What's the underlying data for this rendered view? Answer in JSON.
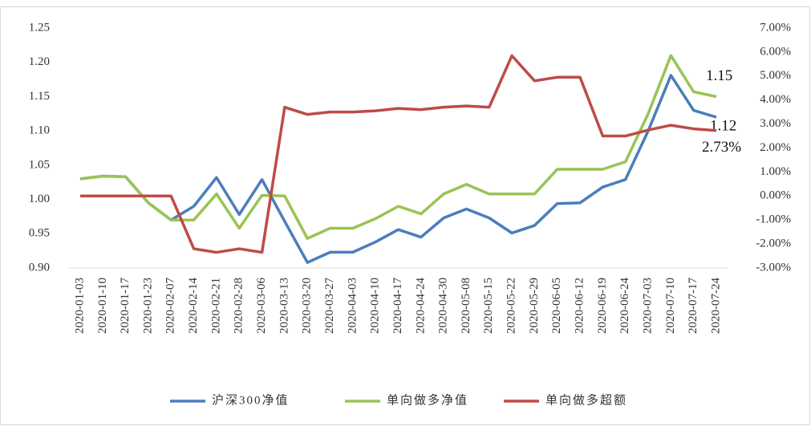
{
  "chart_data": {
    "type": "line",
    "categories": [
      "2020-01-03",
      "2020-01-10",
      "2020-01-17",
      "2020-01-23",
      "2020-02-07",
      "2020-02-14",
      "2020-02-21",
      "2020-02-28",
      "2020-03-06",
      "2020-03-13",
      "2020-03-20",
      "2020-03-27",
      "2020-04-03",
      "2020-04-10",
      "2020-04-17",
      "2020-04-24",
      "2020-04-30",
      "2020-05-08",
      "2020-05-15",
      "2020-05-22",
      "2020-05-29",
      "2020-06-05",
      "2020-06-12",
      "2020-06-19",
      "2020-06-24",
      "2020-07-03",
      "2020-07-10",
      "2020-07-17",
      "2020-07-24"
    ],
    "series": [
      {
        "name": "沪深300净值",
        "color": "#4a7ebb",
        "values": [
          1.03,
          1.034,
          1.033,
          0.995,
          0.97,
          0.99,
          1.032,
          0.978,
          1.029,
          0.968,
          0.908,
          0.923,
          0.923,
          0.938,
          0.956,
          0.945,
          0.973,
          0.986,
          0.973,
          0.951,
          0.962,
          0.994,
          0.995,
          1.018,
          1.029,
          1.1,
          1.181,
          1.13,
          1.12
        ],
        "value_labels": [
          null,
          null,
          null,
          null,
          null,
          null,
          null,
          null,
          null,
          null,
          null,
          null,
          null,
          null,
          null,
          null,
          null,
          null,
          null,
          null,
          null,
          null,
          null,
          null,
          null,
          null,
          null,
          null,
          "1.12"
        ]
      },
      {
        "name": "单向做多净值",
        "color": "#98c454",
        "values": [
          1.03,
          1.034,
          1.033,
          0.995,
          0.97,
          0.97,
          1.008,
          0.958,
          1.006,
          1.005,
          0.943,
          0.958,
          0.958,
          0.972,
          0.99,
          0.979,
          1.008,
          1.022,
          1.008,
          1.008,
          1.008,
          1.044,
          1.044,
          1.044,
          1.055,
          1.125,
          1.21,
          1.157,
          1.15
        ],
        "value_labels": [
          null,
          null,
          null,
          null,
          null,
          null,
          null,
          null,
          null,
          null,
          null,
          null,
          null,
          null,
          null,
          null,
          null,
          null,
          null,
          null,
          null,
          null,
          null,
          null,
          null,
          null,
          null,
          null,
          "1.15"
        ]
      },
      {
        "name": "单向做多超额",
        "color": "#be4b48",
        "axis": "y2",
        "values": [
          0,
          0,
          0,
          0,
          0,
          -2.2,
          -2.35,
          -2.2,
          -2.35,
          3.7,
          3.4,
          3.5,
          3.5,
          3.55,
          3.65,
          3.6,
          3.7,
          3.75,
          3.7,
          5.85,
          4.8,
          4.95,
          4.95,
          2.5,
          2.5,
          2.75,
          2.95,
          2.8,
          2.73
        ],
        "value_labels": [
          null,
          null,
          null,
          null,
          null,
          null,
          null,
          null,
          null,
          null,
          null,
          null,
          null,
          null,
          null,
          null,
          null,
          null,
          null,
          null,
          null,
          null,
          null,
          null,
          null,
          null,
          null,
          null,
          "2.73%"
        ]
      }
    ],
    "ylim": [
      0.9,
      1.25
    ],
    "yticks": [
      {
        "value": 0.9,
        "label": "0.90"
      },
      {
        "value": 0.95,
        "label": "0.95"
      },
      {
        "value": 1.0,
        "label": "1.00"
      },
      {
        "value": 1.05,
        "label": "1.05"
      },
      {
        "value": 1.1,
        "label": "1.10"
      },
      {
        "value": 1.15,
        "label": "1.15"
      },
      {
        "value": 1.2,
        "label": "1.20"
      },
      {
        "value": 1.25,
        "label": "1.25"
      }
    ],
    "y2lim": [
      -3,
      7
    ],
    "y2ticks": [
      {
        "value": -3,
        "label": "-3.00%"
      },
      {
        "value": -2,
        "label": "-2.00%"
      },
      {
        "value": -1,
        "label": "-1.00%"
      },
      {
        "value": 0,
        "label": "0.00%"
      },
      {
        "value": 1,
        "label": "1.00%"
      },
      {
        "value": 2,
        "label": "2.00%"
      },
      {
        "value": 3,
        "label": "3.00%"
      },
      {
        "value": 4,
        "label": "4.00%"
      },
      {
        "value": 5,
        "label": "5.00%"
      },
      {
        "value": 6,
        "label": "6.00%"
      },
      {
        "value": 7,
        "label": "7.00%"
      }
    ],
    "legend": "bottom"
  }
}
